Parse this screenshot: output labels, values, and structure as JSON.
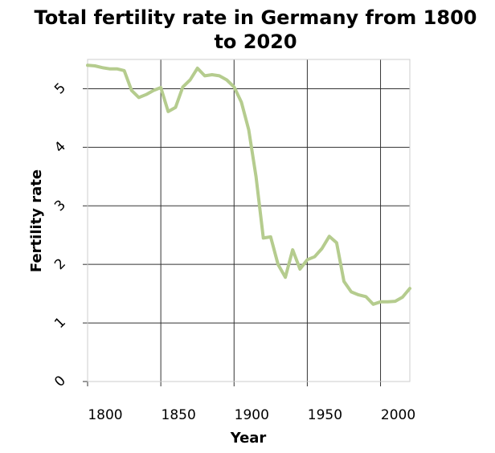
{
  "chart_data": {
    "type": "line",
    "title_lines": [
      "Total fertility rate in Germany from 1800",
      "to 2020"
    ],
    "xlabel": "Year",
    "ylabel": "Fertility rate",
    "xlim": [
      1800,
      2020
    ],
    "ylim": [
      0,
      5.5
    ],
    "xticks": [
      1800,
      1850,
      1900,
      1950,
      2000
    ],
    "xtick_labels": [
      "1800",
      "1850",
      "1900",
      "1950",
      "2000"
    ],
    "yticks": [
      0,
      1,
      2,
      3,
      4,
      5
    ],
    "ytick_labels": [
      "0",
      "1",
      "2",
      "3",
      "4",
      "5"
    ],
    "grid": true,
    "line_color": "#b5cc8e",
    "series": [
      {
        "x": [
          1800,
          1805,
          1810,
          1815,
          1820,
          1825,
          1830,
          1835,
          1840,
          1845,
          1850,
          1855,
          1860,
          1865,
          1870,
          1875,
          1880,
          1885,
          1890,
          1895,
          1900,
          1905,
          1910,
          1915,
          1920,
          1925,
          1930,
          1935,
          1940,
          1945,
          1950,
          1955,
          1960,
          1965,
          1970,
          1975,
          1980,
          1985,
          1990,
          1995,
          2000,
          2005,
          2010,
          2015,
          2020
        ],
        "y": [
          5.4,
          5.39,
          5.36,
          5.34,
          5.34,
          5.31,
          4.97,
          4.85,
          4.9,
          4.97,
          5.02,
          4.61,
          4.68,
          5.03,
          5.15,
          5.35,
          5.22,
          5.24,
          5.22,
          5.15,
          5.03,
          4.77,
          4.3,
          3.5,
          2.45,
          2.47,
          2.0,
          1.78,
          2.25,
          1.92,
          2.08,
          2.13,
          2.27,
          2.48,
          2.37,
          1.71,
          1.53,
          1.48,
          1.45,
          1.32,
          1.36,
          1.36,
          1.37,
          1.44,
          1.59
        ]
      }
    ]
  }
}
